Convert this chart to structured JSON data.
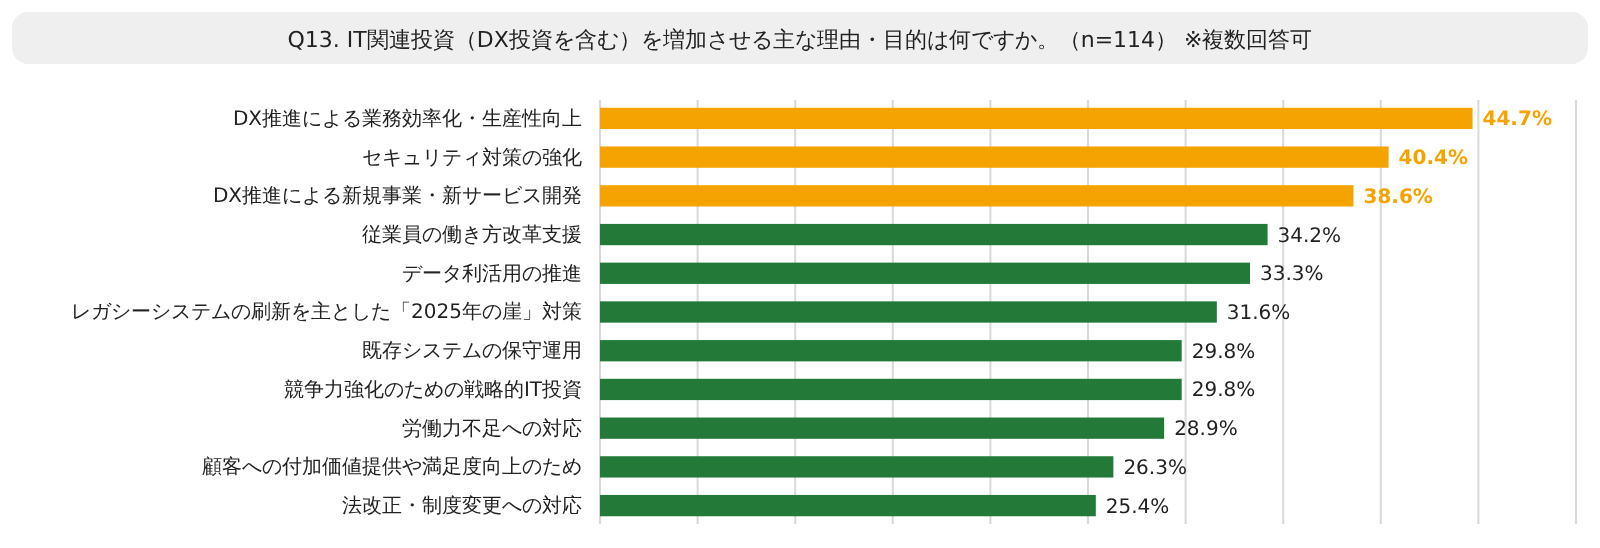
{
  "chart_data": {
    "type": "bar",
    "orientation": "horizontal",
    "title": "Q13. IT関連投資（DX投資を含む）を増加させる主な理由・目的は何ですか。（n=114） ※複数回答可",
    "categories": [
      "DX推進による業務効率化・生産性向上",
      "セキュリティ対策の強化",
      "DX推進による新規事業・新サービス開発",
      "従業員の働き方改革支援",
      "データ利活用の推進",
      "レガシーシステムの刷新を主とした「2025年の崖」対策",
      "既存システムの保守運用",
      "競争力強化のための戦略的IT投資",
      "労働力不足への対応",
      "顧客への付加価値提供や満足度向上のため",
      "法改正・制度変更への対応"
    ],
    "values": [
      44.7,
      40.4,
      38.6,
      34.2,
      33.3,
      31.6,
      29.8,
      29.8,
      28.9,
      26.3,
      25.4
    ],
    "value_labels": [
      "44.7%",
      "40.4%",
      "38.6%",
      "34.2%",
      "33.3%",
      "31.6%",
      "29.8%",
      "29.8%",
      "28.9%",
      "26.3%",
      "25.4%"
    ],
    "colors": [
      "#f5a300",
      "#f5a300",
      "#f5a300",
      "#237a38",
      "#237a38",
      "#237a38",
      "#237a38",
      "#237a38",
      "#237a38",
      "#237a38",
      "#237a38"
    ],
    "xlim": [
      0,
      50
    ],
    "xticks": [
      {
        "value": 0,
        "label": null
      },
      {
        "value": 5,
        "label": null
      },
      {
        "value": 10,
        "label": null
      },
      {
        "value": 15,
        "label": null
      },
      {
        "value": 20,
        "label": null
      },
      {
        "value": 25,
        "label": null
      },
      {
        "value": 30,
        "label": null
      },
      {
        "value": 35,
        "label": null
      },
      {
        "value": 40,
        "label": null
      },
      {
        "value": 45,
        "label": null
      },
      {
        "value": 50,
        "label": null
      }
    ],
    "grid": "x",
    "tick_labels": "y"
  }
}
